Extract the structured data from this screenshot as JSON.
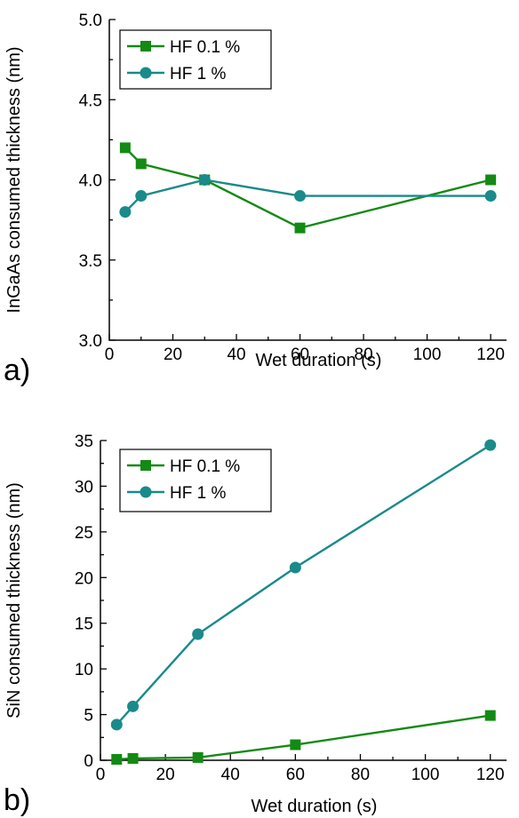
{
  "colors": {
    "series_green": "#138a13",
    "series_teal": "#1a8a8a"
  },
  "chart_data": [
    {
      "type": "line",
      "panel_label": "a)",
      "xlabel": "Wet duration (s)",
      "ylabel": "InGaAs consumed thickness (nm)",
      "xlim": [
        0,
        125
      ],
      "ylim": [
        3.0,
        5.0
      ],
      "xticks": [
        "0",
        "20",
        "40",
        "60",
        "80",
        "100",
        "120"
      ],
      "yticks": [
        "3.0",
        "3.5",
        "4.0",
        "4.5",
        "5.0"
      ],
      "legend_position": "top-left",
      "grid": false,
      "series": [
        {
          "name": "HF 0.1 %",
          "marker": "square",
          "color": "#138a13",
          "x": [
            5,
            10,
            30,
            60,
            120
          ],
          "y": [
            4.2,
            4.1,
            4.0,
            3.7,
            4.0
          ]
        },
        {
          "name": "HF 1 %",
          "marker": "circle",
          "color": "#1a8a8a",
          "x": [
            5,
            10,
            30,
            60,
            120
          ],
          "y": [
            3.8,
            3.9,
            4.0,
            3.9,
            3.9
          ]
        }
      ]
    },
    {
      "type": "line",
      "panel_label": "b)",
      "xlabel": "Wet duration (s)",
      "ylabel": "SiN consumed thickness (nm)",
      "xlim": [
        0,
        125
      ],
      "ylim": [
        0,
        35
      ],
      "xticks": [
        "0",
        "20",
        "40",
        "60",
        "80",
        "100",
        "120"
      ],
      "yticks": [
        "0",
        "5",
        "10",
        "15",
        "20",
        "25",
        "30",
        "35"
      ],
      "legend_position": "top-left",
      "grid": false,
      "series": [
        {
          "name": "HF 0.1 %",
          "marker": "square",
          "color": "#138a13",
          "x": [
            5,
            10,
            30,
            60,
            120
          ],
          "y": [
            0.1,
            0.2,
            0.3,
            1.7,
            4.9
          ]
        },
        {
          "name": "HF 1 %",
          "marker": "circle",
          "color": "#1a8a8a",
          "x": [
            5,
            10,
            30,
            60,
            120
          ],
          "y": [
            3.9,
            5.9,
            13.8,
            21.1,
            34.5
          ]
        }
      ]
    }
  ]
}
